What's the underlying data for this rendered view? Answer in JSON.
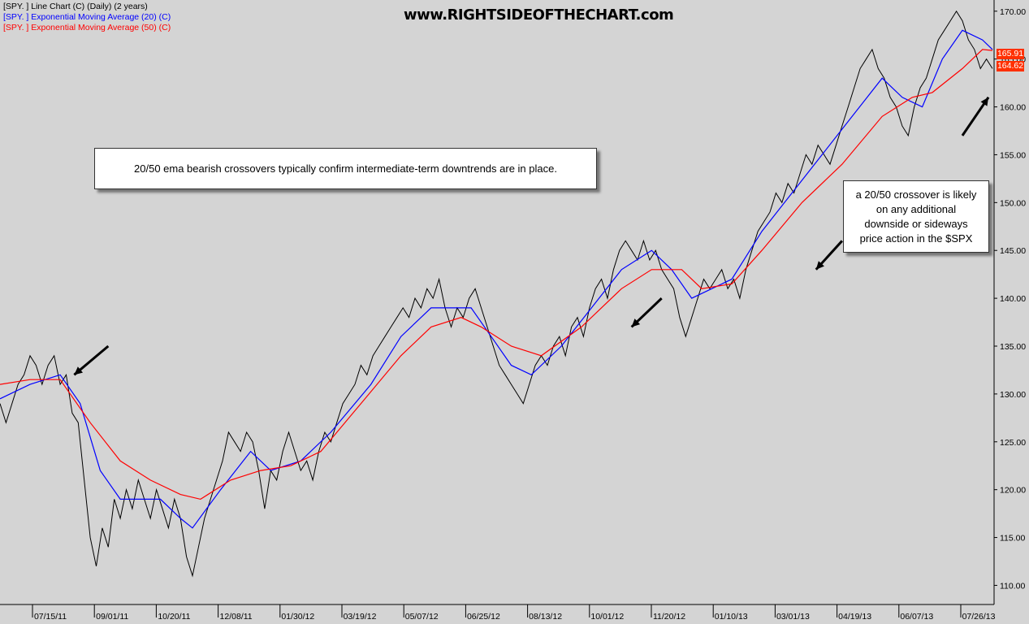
{
  "legend": [
    {
      "text": "[SPY. ] Line Chart (C) (Daily) (2 years)",
      "color": "#000000"
    },
    {
      "text": "[SPY. ] Exponential Moving Average (20) (C)",
      "color": "#0000ff"
    },
    {
      "text": "[SPY. ] Exponential Moving Average (50) (C)",
      "color": "#ff0000"
    }
  ],
  "site_title": "www.RIGHTSIDEOFTHECHART.com",
  "notes": {
    "main": "20/50 ema bearish crossovers typically confirm intermediate-term downtrends are in place.",
    "side": "a 20/50 crossover is likely\non any additional\ndownside or sideways\nprice action in the $SPX"
  },
  "price_tags": [
    {
      "value": "165.91",
      "color": "#ff3000"
    },
    {
      "value": "164.62",
      "color": "#ff3000"
    }
  ],
  "colors": {
    "background": "#d4d4d4",
    "price": "#000000",
    "ema20": "#0000ff",
    "ema50": "#ff0000",
    "arrow": "#000000"
  },
  "chart_data": {
    "type": "line",
    "x_ticks": [
      "07/15/11",
      "09/01/11",
      "10/20/11",
      "12/08/11",
      "01/30/12",
      "03/19/12",
      "05/07/12",
      "06/25/12",
      "08/13/12",
      "10/01/12",
      "11/20/12",
      "01/10/13",
      "03/01/13",
      "04/19/13",
      "06/07/13",
      "07/26/13"
    ],
    "y_ticks": [
      "110.00",
      "115.00",
      "120.00",
      "125.00",
      "130.00",
      "135.00",
      "140.00",
      "145.00",
      "150.00",
      "155.00",
      "160.00",
      "165.00",
      "170.00"
    ],
    "ylim": [
      108,
      171
    ],
    "grid": false,
    "legend_position": "top-left",
    "series": [
      {
        "name": "[SPY. ] Line Chart (C) (Daily) (2 years)",
        "color": "#000000",
        "points": [
          [
            0,
            129
          ],
          [
            3,
            127
          ],
          [
            6,
            129
          ],
          [
            9,
            131
          ],
          [
            12,
            132
          ],
          [
            15,
            134
          ],
          [
            18,
            133
          ],
          [
            21,
            131
          ],
          [
            24,
            133
          ],
          [
            27,
            134
          ],
          [
            30,
            131
          ],
          [
            33,
            132
          ],
          [
            36,
            128
          ],
          [
            39,
            127
          ],
          [
            42,
            121
          ],
          [
            45,
            115
          ],
          [
            48,
            112
          ],
          [
            51,
            116
          ],
          [
            54,
            114
          ],
          [
            57,
            119
          ],
          [
            60,
            117
          ],
          [
            63,
            120
          ],
          [
            66,
            118
          ],
          [
            69,
            121
          ],
          [
            72,
            119
          ],
          [
            75,
            117
          ],
          [
            78,
            120
          ],
          [
            81,
            118
          ],
          [
            84,
            116
          ],
          [
            87,
            119
          ],
          [
            90,
            117
          ],
          [
            93,
            113
          ],
          [
            96,
            111
          ],
          [
            99,
            114
          ],
          [
            102,
            117
          ],
          [
            105,
            119
          ],
          [
            108,
            121
          ],
          [
            111,
            123
          ],
          [
            114,
            126
          ],
          [
            117,
            125
          ],
          [
            120,
            124
          ],
          [
            123,
            126
          ],
          [
            126,
            125
          ],
          [
            129,
            122
          ],
          [
            132,
            118
          ],
          [
            135,
            122
          ],
          [
            138,
            121
          ],
          [
            141,
            124
          ],
          [
            144,
            126
          ],
          [
            147,
            124
          ],
          [
            150,
            122
          ],
          [
            153,
            123
          ],
          [
            156,
            121
          ],
          [
            159,
            124
          ],
          [
            162,
            126
          ],
          [
            165,
            125
          ],
          [
            168,
            127
          ],
          [
            171,
            129
          ],
          [
            174,
            130
          ],
          [
            177,
            131
          ],
          [
            180,
            133
          ],
          [
            183,
            132
          ],
          [
            186,
            134
          ],
          [
            189,
            135
          ],
          [
            192,
            136
          ],
          [
            195,
            137
          ],
          [
            198,
            138
          ],
          [
            201,
            139
          ],
          [
            204,
            138
          ],
          [
            207,
            140
          ],
          [
            210,
            139
          ],
          [
            213,
            141
          ],
          [
            216,
            140
          ],
          [
            219,
            142
          ],
          [
            222,
            139
          ],
          [
            225,
            137
          ],
          [
            228,
            139
          ],
          [
            231,
            138
          ],
          [
            234,
            140
          ],
          [
            237,
            141
          ],
          [
            240,
            139
          ],
          [
            243,
            137
          ],
          [
            246,
            135
          ],
          [
            249,
            133
          ],
          [
            252,
            132
          ],
          [
            255,
            131
          ],
          [
            258,
            130
          ],
          [
            261,
            129
          ],
          [
            264,
            131
          ],
          [
            267,
            133
          ],
          [
            270,
            134
          ],
          [
            273,
            133
          ],
          [
            276,
            135
          ],
          [
            279,
            136
          ],
          [
            282,
            134
          ],
          [
            285,
            137
          ],
          [
            288,
            138
          ],
          [
            291,
            136
          ],
          [
            294,
            139
          ],
          [
            297,
            141
          ],
          [
            300,
            142
          ],
          [
            303,
            140
          ],
          [
            306,
            143
          ],
          [
            309,
            145
          ],
          [
            312,
            146
          ],
          [
            315,
            145
          ],
          [
            318,
            144
          ],
          [
            321,
            146
          ],
          [
            324,
            144
          ],
          [
            327,
            145
          ],
          [
            330,
            143
          ],
          [
            333,
            142
          ],
          [
            336,
            141
          ],
          [
            339,
            138
          ],
          [
            342,
            136
          ],
          [
            345,
            138
          ],
          [
            348,
            140
          ],
          [
            351,
            142
          ],
          [
            354,
            141
          ],
          [
            357,
            142
          ],
          [
            360,
            143
          ],
          [
            363,
            141
          ],
          [
            366,
            142
          ],
          [
            369,
            140
          ],
          [
            372,
            143
          ],
          [
            375,
            145
          ],
          [
            378,
            147
          ],
          [
            381,
            148
          ],
          [
            384,
            149
          ],
          [
            387,
            151
          ],
          [
            390,
            150
          ],
          [
            393,
            152
          ],
          [
            396,
            151
          ],
          [
            399,
            153
          ],
          [
            402,
            155
          ],
          [
            405,
            154
          ],
          [
            408,
            156
          ],
          [
            411,
            155
          ],
          [
            414,
            154
          ],
          [
            417,
            156
          ],
          [
            420,
            158
          ],
          [
            423,
            160
          ],
          [
            426,
            162
          ],
          [
            429,
            164
          ],
          [
            432,
            165
          ],
          [
            435,
            166
          ],
          [
            438,
            164
          ],
          [
            441,
            163
          ],
          [
            444,
            161
          ],
          [
            447,
            160
          ],
          [
            450,
            158
          ],
          [
            453,
            157
          ],
          [
            456,
            160
          ],
          [
            459,
            162
          ],
          [
            462,
            163
          ],
          [
            465,
            165
          ],
          [
            468,
            167
          ],
          [
            471,
            168
          ],
          [
            474,
            169
          ],
          [
            477,
            170
          ],
          [
            480,
            169
          ],
          [
            483,
            167
          ],
          [
            486,
            166
          ],
          [
            489,
            164
          ],
          [
            492,
            165
          ],
          [
            495,
            164
          ]
        ]
      },
      {
        "name": "[SPY. ] Exponential Moving Average (20) (C)",
        "color": "#0000ff",
        "points": [
          [
            0,
            129.5
          ],
          [
            15,
            131
          ],
          [
            30,
            132
          ],
          [
            40,
            129
          ],
          [
            50,
            122
          ],
          [
            60,
            119
          ],
          [
            70,
            119
          ],
          [
            80,
            119
          ],
          [
            90,
            117
          ],
          [
            96,
            116
          ],
          [
            110,
            120
          ],
          [
            125,
            124
          ],
          [
            135,
            122
          ],
          [
            150,
            123
          ],
          [
            165,
            126
          ],
          [
            185,
            131
          ],
          [
            200,
            136
          ],
          [
            215,
            139
          ],
          [
            225,
            139
          ],
          [
            235,
            139
          ],
          [
            245,
            136
          ],
          [
            255,
            133
          ],
          [
            265,
            132
          ],
          [
            280,
            135
          ],
          [
            295,
            139
          ],
          [
            310,
            143
          ],
          [
            325,
            145
          ],
          [
            335,
            143
          ],
          [
            345,
            140
          ],
          [
            355,
            141
          ],
          [
            365,
            142
          ],
          [
            380,
            147
          ],
          [
            395,
            151
          ],
          [
            410,
            155
          ],
          [
            425,
            159
          ],
          [
            440,
            163
          ],
          [
            450,
            161
          ],
          [
            460,
            160
          ],
          [
            470,
            165
          ],
          [
            480,
            168
          ],
          [
            490,
            167
          ],
          [
            495,
            166
          ]
        ]
      },
      {
        "name": "[SPY. ] Exponential Moving Average (50) (C)",
        "color": "#ff0000",
        "points": [
          [
            0,
            131
          ],
          [
            15,
            131.5
          ],
          [
            30,
            131.5
          ],
          [
            45,
            127
          ],
          [
            60,
            123
          ],
          [
            75,
            121
          ],
          [
            90,
            119.5
          ],
          [
            100,
            119
          ],
          [
            115,
            121
          ],
          [
            130,
            122
          ],
          [
            145,
            122.5
          ],
          [
            160,
            124
          ],
          [
            180,
            129
          ],
          [
            200,
            134
          ],
          [
            215,
            137
          ],
          [
            230,
            138
          ],
          [
            240,
            137
          ],
          [
            255,
            135
          ],
          [
            270,
            134
          ],
          [
            290,
            137
          ],
          [
            310,
            141
          ],
          [
            325,
            143
          ],
          [
            340,
            143
          ],
          [
            350,
            141
          ],
          [
            365,
            141.5
          ],
          [
            380,
            145
          ],
          [
            400,
            150
          ],
          [
            420,
            154
          ],
          [
            440,
            159
          ],
          [
            455,
            161
          ],
          [
            465,
            161.5
          ],
          [
            480,
            164
          ],
          [
            490,
            166
          ],
          [
            495,
            165.9
          ]
        ]
      }
    ],
    "arrows": [
      {
        "from": [
          54,
          135
        ],
        "to": [
          37,
          132
        ]
      },
      {
        "from": [
          330,
          140
        ],
        "to": [
          315,
          137
        ]
      },
      {
        "from": [
          420,
          146
        ],
        "to": [
          407,
          143
        ]
      },
      {
        "from": [
          480,
          157
        ],
        "to": [
          493,
          161
        ]
      }
    ]
  }
}
